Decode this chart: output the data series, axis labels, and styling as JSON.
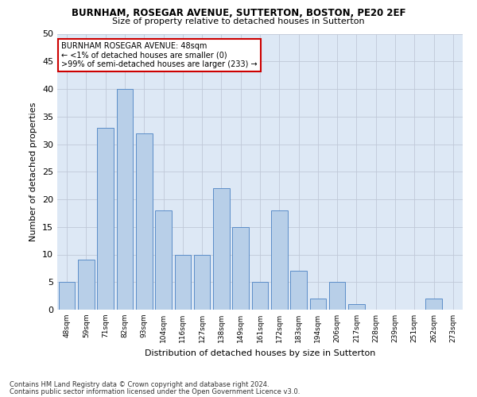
{
  "title1": "BURNHAM, ROSEGAR AVENUE, SUTTERTON, BOSTON, PE20 2EF",
  "title2": "Size of property relative to detached houses in Sutterton",
  "xlabel": "Distribution of detached houses by size in Sutterton",
  "ylabel": "Number of detached properties",
  "footnote1": "Contains HM Land Registry data © Crown copyright and database right 2024.",
  "footnote2": "Contains public sector information licensed under the Open Government Licence v3.0.",
  "annotation_line1": "BURNHAM ROSEGAR AVENUE: 48sqm",
  "annotation_line2": "← <1% of detached houses are smaller (0)",
  "annotation_line3": ">99% of semi-detached houses are larger (233) →",
  "categories": [
    "48sqm",
    "59sqm",
    "71sqm",
    "82sqm",
    "93sqm",
    "104sqm",
    "116sqm",
    "127sqm",
    "138sqm",
    "149sqm",
    "161sqm",
    "172sqm",
    "183sqm",
    "194sqm",
    "206sqm",
    "217sqm",
    "228sqm",
    "239sqm",
    "251sqm",
    "262sqm",
    "273sqm"
  ],
  "values": [
    5,
    9,
    33,
    40,
    32,
    18,
    10,
    10,
    22,
    15,
    5,
    18,
    7,
    2,
    5,
    1,
    0,
    0,
    0,
    2,
    0
  ],
  "bar_color": "#b8cfe8",
  "bar_edge_color": "#5b8dc8",
  "annotation_box_color": "#ffffff",
  "annotation_box_edge_color": "#cc0000",
  "ax_bg_color": "#dde8f5",
  "background_color": "#ffffff",
  "grid_color": "#c0c8d8",
  "ylim": [
    0,
    50
  ],
  "yticks": [
    0,
    5,
    10,
    15,
    20,
    25,
    30,
    35,
    40,
    45,
    50
  ]
}
